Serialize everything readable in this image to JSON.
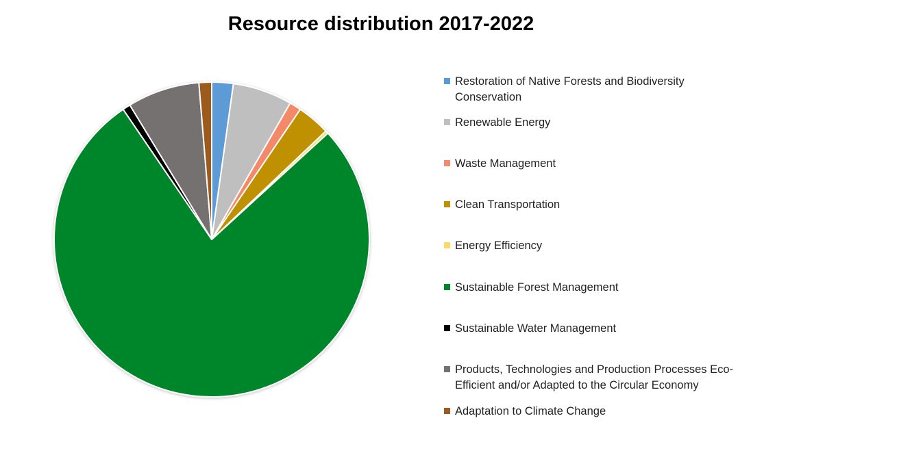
{
  "chart_data": {
    "type": "pie",
    "title": "Resource distribution 2017-2022",
    "legend_position": "right",
    "slices": [
      {
        "label": "Restoration of Native Forests and Biodiversity Conservation",
        "value": 2.2,
        "color": "#5B9BD5"
      },
      {
        "label": "Renewable Energy",
        "value": 6.1,
        "color": "#BFBFBF"
      },
      {
        "label": "Waste Management",
        "value": 1.2,
        "color": "#F4896B"
      },
      {
        "label": "Clean Transportation",
        "value": 3.4,
        "color": "#BF9000"
      },
      {
        "label": "Energy Efficiency",
        "value": 0.3,
        "color": "#FFD966"
      },
      {
        "label": "Sustainable Forest Management",
        "value": 77.3,
        "color": "#00862A"
      },
      {
        "label": "Sustainable Water Management",
        "value": 0.8,
        "color": "#000000"
      },
      {
        "label": "Products, Technologies and Production Processes Eco-Efficient and/or Adapted to the Circular Economy",
        "value": 7.4,
        "color": "#767171"
      },
      {
        "label": "Adaptation to Climate Change",
        "value": 1.3,
        "color": "#9C5A1E"
      }
    ]
  },
  "legend": {
    "lines": [
      [
        "Restoration of Native Forests and Biodiversity",
        "Conservation"
      ],
      [
        "Renewable Energy"
      ],
      [
        "Waste Management"
      ],
      [
        "Clean Transportation"
      ],
      [
        "Energy Efficiency"
      ],
      [
        "Sustainable Forest Management"
      ],
      [
        "Sustainable Water Management"
      ],
      [
        "Products, Technologies and Production Processes Eco-",
        "Efficient and/or Adapted to the Circular Economy"
      ],
      [
        "Adaptation to Climate Change"
      ]
    ]
  }
}
